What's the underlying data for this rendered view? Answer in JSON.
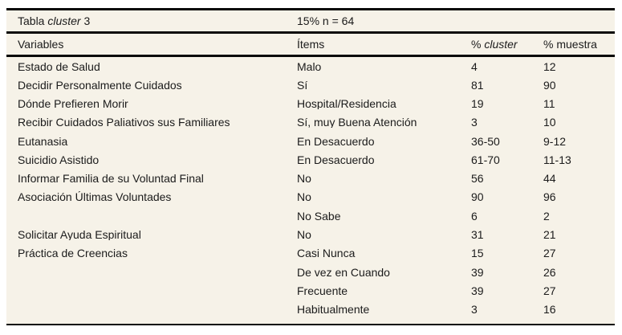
{
  "colors": {
    "table_background": "#f6f2e8",
    "rule": "#0a0a0a",
    "text": "#1b1b1b",
    "page_background": "#ffffff"
  },
  "table": {
    "caption": {
      "title_prefix": "Tabla ",
      "title_italic": "cluster",
      "title_suffix": " 3",
      "subtitle": "15% n = 64"
    },
    "headers": {
      "variables": "Variables",
      "items": "Ítems",
      "pct_cluster_prefix": "% ",
      "pct_cluster_italic": "cluster",
      "pct_muestra": "% muestra"
    },
    "rows": [
      [
        "Estado de Salud",
        "Malo",
        "4",
        "12"
      ],
      [
        "Decidir Personalmente Cuidados",
        "Sí",
        "81",
        "90"
      ],
      [
        "Dónde Prefieren Morir",
        "Hospital/Residencia",
        "19",
        "11"
      ],
      [
        "Recibir Cuidados Paliativos sus Familiares",
        "Sí, muy Buena Atención",
        "3",
        "10"
      ],
      [
        "Eutanasia",
        "En Desacuerdo",
        "36-50",
        "9-12"
      ],
      [
        "Suicidio Asistido",
        "En Desacuerdo",
        "61-70",
        "11-13"
      ],
      [
        "Informar Familia de su Voluntad Final",
        "No",
        "56",
        "44"
      ],
      [
        "Asociación Últimas Voluntades",
        "No",
        "90",
        "96"
      ],
      [
        "",
        "No Sabe",
        "6",
        "2"
      ],
      [
        "Solicitar Ayuda Espiritual",
        "No",
        "31",
        "21"
      ],
      [
        "Práctica de Creencias",
        "Casi Nunca",
        "15",
        "27"
      ],
      [
        "",
        "De vez en Cuando",
        "39",
        "26"
      ],
      [
        "",
        "Frecuente",
        "39",
        "27"
      ],
      [
        "",
        "Habitualmente",
        "3",
        "16"
      ]
    ]
  }
}
